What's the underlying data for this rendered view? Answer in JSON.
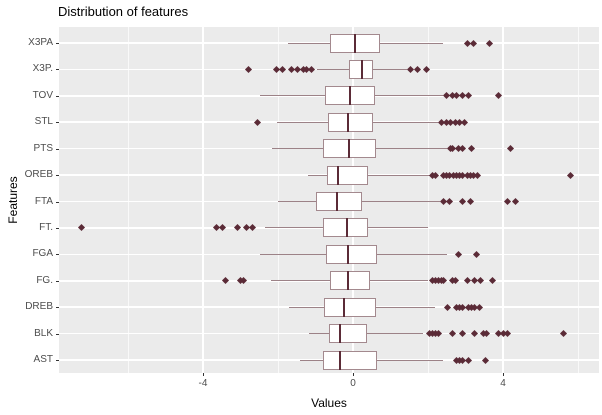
{
  "title": "Distribution of features",
  "chart_data": {
    "type": "boxplot",
    "orientation": "horizontal",
    "title": "Distribution of features",
    "xlabel": "Values",
    "ylabel": "Features",
    "xlim": [
      -7.84,
      6.56
    ],
    "x_major_ticks": [
      -4,
      0,
      4
    ],
    "x_major_tick_labels": [
      "-4",
      "0",
      "4"
    ],
    "x_minor_ticks": [
      -6,
      -2,
      2,
      6
    ],
    "grid": true,
    "legend": "none",
    "categories_top_to_bottom": [
      "X3PA",
      "X3P.",
      "TOV",
      "STL",
      "PTS",
      "OREB",
      "FTA",
      "FT.",
      "FGA",
      "FG.",
      "DREB",
      "BLK",
      "AST"
    ],
    "series": [
      {
        "name": "X3PA",
        "whisker_lo": -1.73,
        "q1": -0.61,
        "median": 0.05,
        "q3": 0.72,
        "whisker_hi": 2.4,
        "outliers": [
          3.04,
          3.2,
          3.63
        ]
      },
      {
        "name": "X3P.",
        "whisker_lo": -0.96,
        "q1": -0.11,
        "median": 0.24,
        "q3": 0.53,
        "whisker_hi": 1.44,
        "outliers": [
          -2.8,
          -2.05,
          -1.89,
          -1.63,
          -1.49,
          -1.33,
          -1.23,
          -1.12,
          1.52,
          1.71,
          1.95
        ]
      },
      {
        "name": "TOV",
        "whisker_lo": -2.48,
        "q1": -0.75,
        "median": -0.08,
        "q3": 0.59,
        "whisker_hi": 2.4,
        "outliers": [
          2.5,
          2.64,
          2.77,
          2.91,
          3.07,
          3.87
        ]
      },
      {
        "name": "STL",
        "whisker_lo": -2.03,
        "q1": -0.67,
        "median": -0.13,
        "q3": 0.53,
        "whisker_hi": 2.27,
        "outliers": [
          -2.56,
          2.37,
          2.5,
          2.61,
          2.72,
          2.85,
          2.96
        ]
      },
      {
        "name": "PTS",
        "whisker_lo": -2.16,
        "q1": -0.8,
        "median": -0.1,
        "q3": 0.61,
        "whisker_hi": 2.5,
        "outliers": [
          2.59,
          2.64,
          2.8,
          2.91,
          3.15,
          4.19
        ]
      },
      {
        "name": "OREB",
        "whisker_lo": -1.2,
        "q1": -0.7,
        "median": -0.4,
        "q3": 0.4,
        "whisker_hi": 2.08,
        "outliers": [
          2.13,
          2.21,
          2.4,
          2.5,
          2.56,
          2.67,
          2.77,
          2.85,
          2.93,
          3.04,
          3.12,
          3.2,
          3.31,
          5.79
        ]
      },
      {
        "name": "FTA",
        "whisker_lo": -2.0,
        "q1": -1.0,
        "median": -0.42,
        "q3": 0.24,
        "whisker_hi": 2.32,
        "outliers": [
          2.4,
          2.56,
          2.93,
          3.12,
          4.11,
          4.32
        ]
      },
      {
        "name": "FT.",
        "whisker_lo": -2.35,
        "q1": -0.8,
        "median": -0.17,
        "q3": 0.4,
        "whisker_hi": 2.0,
        "outliers": [
          -7.25,
          -3.63,
          -3.47,
          -3.09,
          -2.83,
          -2.67
        ]
      },
      {
        "name": "FGA",
        "whisker_lo": -2.48,
        "q1": -0.72,
        "median": -0.13,
        "q3": 0.64,
        "whisker_hi": 2.5,
        "outliers": [
          2.8,
          3.28
        ]
      },
      {
        "name": "FG.",
        "whisker_lo": -2.19,
        "q1": -0.61,
        "median": -0.13,
        "q3": 0.45,
        "whisker_hi": 2.0,
        "outliers": [
          -3.39,
          -3.01,
          -2.91,
          2.13,
          2.19,
          2.27,
          2.35,
          2.4,
          2.64,
          2.72,
          3.04,
          3.23,
          3.41,
          3.71
        ]
      },
      {
        "name": "DREB",
        "whisker_lo": -1.7,
        "q1": -0.77,
        "median": -0.24,
        "q3": 0.61,
        "whisker_hi": 2.19,
        "outliers": [
          2.53,
          2.75,
          2.83,
          2.93,
          3.07,
          3.17,
          3.25,
          3.36
        ]
      },
      {
        "name": "BLK",
        "whisker_lo": -1.17,
        "q1": -0.64,
        "median": -0.35,
        "q3": 0.37,
        "whisker_hi": 1.87,
        "outliers": [
          2.03,
          2.11,
          2.19,
          2.29,
          2.64,
          2.93,
          3.25,
          3.47,
          3.57,
          3.89,
          4.0,
          4.11,
          5.6
        ]
      },
      {
        "name": "AST",
        "whisker_lo": -1.41,
        "q1": -0.8,
        "median": -0.35,
        "q3": 0.64,
        "whisker_hi": 2.4,
        "outliers": [
          2.75,
          2.83,
          2.93,
          3.07,
          3.52
        ]
      }
    ],
    "style": {
      "panel_bg": "#ebebeb",
      "grid_major": "#ffffff",
      "grid_minor": "rgba(255,255,255,0.7)",
      "box_fill": "#ffffff",
      "box_border": "#a3898e",
      "whisker_color": "#9c8287",
      "median_color": "#5b2b37",
      "outlier_color": "#5b2b37",
      "tick_color": "#333333",
      "tick_label_color": "#4d4d4d",
      "title_color": "#000000",
      "axis_title_color": "#000000"
    }
  }
}
